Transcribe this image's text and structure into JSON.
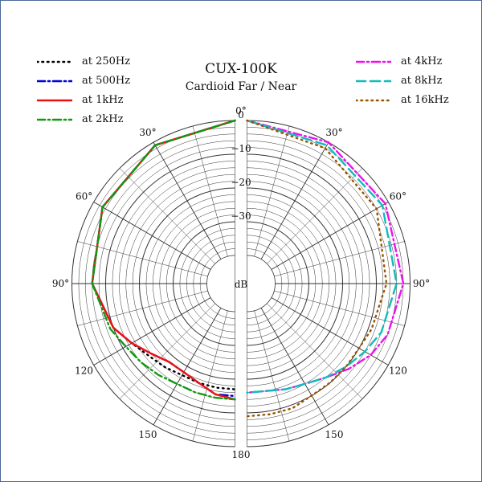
{
  "chart_data": {
    "type": "polar",
    "title": "CUX-100K",
    "subtitle": "Cardioid Far / Near",
    "center_label": "dB",
    "r_ticks": [
      "0",
      "−10",
      "−20",
      "−30"
    ],
    "angle_labels": [
      {
        "deg": 0,
        "text": "0°"
      },
      {
        "deg": 30,
        "text": "30°"
      },
      {
        "deg": 60,
        "text": "60°"
      },
      {
        "deg": 90,
        "text": "90°"
      },
      {
        "deg": 120,
        "text": "120"
      },
      {
        "deg": 150,
        "text": "150"
      },
      {
        "deg": 180,
        "text": "180"
      }
    ],
    "r_range_db": [
      -40,
      0
    ],
    "grid": true,
    "left_series": [
      {
        "name": "at 250Hz",
        "color": "#000000",
        "dash": "dot",
        "angles": [
          0,
          30,
          60,
          90,
          110,
          120,
          130,
          140,
          150,
          160,
          170,
          180
        ],
        "values": [
          0,
          -1,
          -3,
          -6,
          -10,
          -13,
          -15,
          -16,
          -17,
          -17,
          -17,
          -17
        ]
      },
      {
        "name": "at 500Hz",
        "color": "#0000dd",
        "dash": "dashdot",
        "angles": [
          0,
          30,
          60,
          90,
          110,
          120,
          130,
          140,
          150,
          160,
          170,
          180
        ],
        "values": [
          0,
          -1,
          -3,
          -6,
          -10,
          -13,
          -16,
          -18,
          -18,
          -17,
          -15,
          -15
        ]
      },
      {
        "name": "at 1kHz",
        "color": "#ee1111",
        "dash": "solid",
        "angles": [
          0,
          30,
          60,
          90,
          110,
          120,
          130,
          140,
          150,
          160,
          170,
          180
        ],
        "values": [
          0,
          -1,
          -3,
          -6,
          -10,
          -13,
          -16,
          -18,
          -18,
          -17,
          -15,
          -14
        ]
      },
      {
        "name": "at 2kHz",
        "color": "#119911",
        "dash": "dashdot",
        "angles": [
          0,
          30,
          60,
          90,
          110,
          120,
          130,
          140,
          150,
          160,
          170,
          180
        ],
        "values": [
          0,
          -1,
          -3,
          -6,
          -9,
          -11,
          -12,
          -13,
          -14,
          -14,
          -14,
          -14
        ]
      }
    ],
    "right_series": [
      {
        "name": "at 4kHz",
        "color": "#ee11ee",
        "dash": "dashdot",
        "angles": [
          0,
          30,
          60,
          90,
          110,
          120,
          130,
          140,
          150,
          160,
          170,
          180
        ],
        "values": [
          0,
          0,
          -1,
          -2,
          -4,
          -6,
          -9,
          -12,
          -14,
          -15,
          -16,
          -16
        ]
      },
      {
        "name": "at 8kHz",
        "color": "#11bbbb",
        "dash": "dash",
        "angles": [
          0,
          30,
          60,
          90,
          110,
          120,
          130,
          140,
          150,
          160,
          170,
          180
        ],
        "values": [
          0,
          -1,
          -2,
          -4,
          -6,
          -8,
          -10,
          -12,
          -14,
          -15,
          -16,
          -16
        ]
      },
      {
        "name": "at 16kHz",
        "color": "#995500",
        "dash": "dot",
        "angles": [
          0,
          30,
          60,
          90,
          110,
          120,
          130,
          140,
          150,
          160,
          170,
          180
        ],
        "values": [
          0,
          -2,
          -4,
          -7,
          -9,
          -10,
          -10,
          -10,
          -10,
          -9,
          -9,
          -9
        ]
      }
    ]
  }
}
